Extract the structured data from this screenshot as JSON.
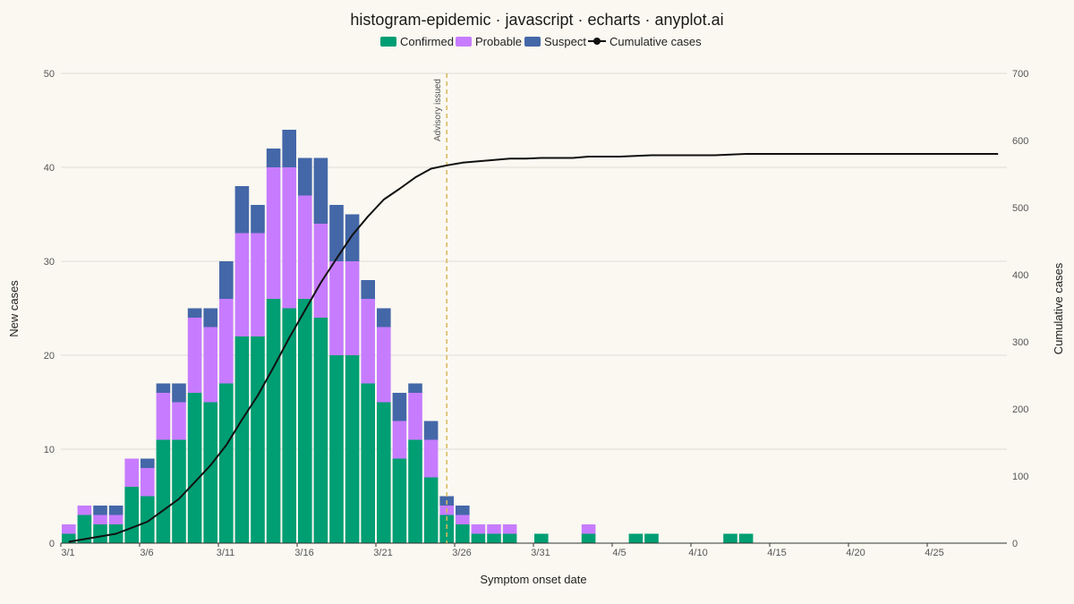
{
  "chart_data": {
    "type": "bar",
    "stacked": true,
    "title": "histogram-epidemic · javascript · echarts · anyplot.ai",
    "xlabel": "Symptom onset date",
    "ylabel": "New cases",
    "y2label": "Cumulative cases",
    "ylim": [
      0,
      50
    ],
    "y2lim": [
      0,
      700
    ],
    "grid": true,
    "legend_position": "top-center",
    "categories": [
      "3/1",
      "3/2",
      "3/3",
      "3/4",
      "3/5",
      "3/6",
      "3/7",
      "3/8",
      "3/9",
      "3/10",
      "3/11",
      "3/12",
      "3/13",
      "3/14",
      "3/15",
      "3/16",
      "3/17",
      "3/18",
      "3/19",
      "3/20",
      "3/21",
      "3/22",
      "3/23",
      "3/24",
      "3/25",
      "3/26",
      "3/27",
      "3/28",
      "3/29",
      "3/30",
      "3/31",
      "4/1",
      "4/2",
      "4/3",
      "4/4",
      "4/5",
      "4/6",
      "4/7",
      "4/8",
      "4/9",
      "4/10",
      "4/11",
      "4/12",
      "4/13",
      "4/14",
      "4/15",
      "4/16",
      "4/17",
      "4/18",
      "4/19",
      "4/20",
      "4/21",
      "4/22",
      "4/23",
      "4/24",
      "4/25",
      "4/26",
      "4/27",
      "4/28",
      "4/29"
    ],
    "x_tick_labels": [
      "3/1",
      "3/6",
      "3/11",
      "3/16",
      "3/21",
      "3/26",
      "3/31",
      "4/5",
      "4/10",
      "4/15",
      "4/20",
      "4/25"
    ],
    "y_ticks": [
      0,
      10,
      20,
      30,
      40,
      50
    ],
    "y2_ticks": [
      0,
      100,
      200,
      300,
      400,
      500,
      600,
      700
    ],
    "series": [
      {
        "name": "Confirmed",
        "color": "#009E73",
        "values": [
          1,
          3,
          2,
          2,
          6,
          5,
          11,
          11,
          16,
          15,
          17,
          22,
          22,
          26,
          25,
          26,
          24,
          20,
          20,
          17,
          15,
          9,
          11,
          7,
          3,
          2,
          1,
          1,
          1,
          0,
          1,
          0,
          0,
          1,
          0,
          0,
          1,
          1,
          0,
          0,
          0,
          0,
          1,
          1,
          0,
          0,
          0,
          0,
          0,
          0,
          0,
          0,
          0,
          0,
          0,
          0,
          0,
          0,
          0,
          0
        ]
      },
      {
        "name": "Probable",
        "color": "#C77CFF",
        "values": [
          1,
          1,
          1,
          1,
          3,
          3,
          5,
          4,
          8,
          8,
          9,
          11,
          11,
          14,
          15,
          11,
          10,
          10,
          10,
          9,
          8,
          4,
          5,
          4,
          1,
          1,
          1,
          1,
          1,
          0,
          0,
          0,
          0,
          1,
          0,
          0,
          0,
          0,
          0,
          0,
          0,
          0,
          0,
          0,
          0,
          0,
          0,
          0,
          0,
          0,
          0,
          0,
          0,
          0,
          0,
          0,
          0,
          0,
          0,
          0
        ]
      },
      {
        "name": "Suspect",
        "color": "#4467A8",
        "values": [
          0,
          0,
          1,
          1,
          0,
          1,
          1,
          2,
          1,
          2,
          4,
          5,
          3,
          2,
          4,
          4,
          7,
          6,
          5,
          2,
          2,
          3,
          1,
          2,
          1,
          1,
          0,
          0,
          0,
          0,
          0,
          0,
          0,
          0,
          0,
          0,
          0,
          0,
          0,
          0,
          0,
          0,
          0,
          0,
          0,
          0,
          0,
          0,
          0,
          0,
          0,
          0,
          0,
          0,
          0,
          0,
          0,
          0,
          0,
          0
        ]
      }
    ],
    "line_series": {
      "name": "Cumulative cases",
      "color": "#111111",
      "axis": "right",
      "values": [
        2,
        6,
        10,
        14,
        23,
        32,
        49,
        66,
        91,
        116,
        146,
        184,
        220,
        262,
        306,
        347,
        388,
        424,
        459,
        487,
        512,
        528,
        545,
        558,
        563,
        567,
        569,
        571,
        573,
        573,
        574,
        574,
        574,
        576,
        576,
        576,
        577,
        578,
        578,
        578,
        578,
        578,
        579,
        580,
        580,
        580,
        580,
        580,
        580,
        580,
        580,
        580,
        580,
        580,
        580,
        580,
        580,
        580,
        580,
        580
      ]
    },
    "annotation": {
      "label": "Advisory issued",
      "x": "3/25",
      "color": "#D9B95A"
    }
  }
}
